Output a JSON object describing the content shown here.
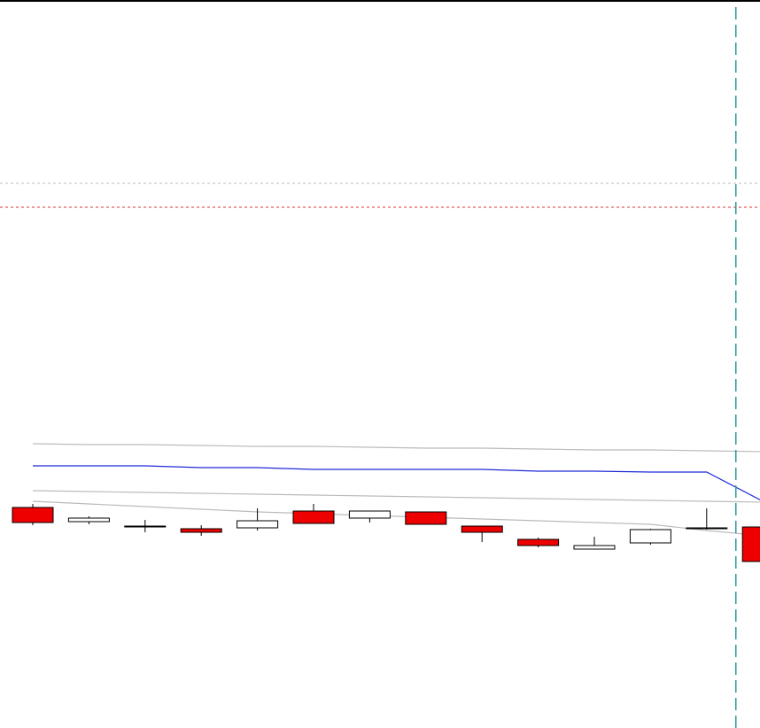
{
  "chart_data": {
    "type": "candlestick",
    "ylim": [
      0,
      822
    ],
    "up_color": "#ffffff",
    "down_color": "#ee0000",
    "candles": {
      "open": [
        249,
        233,
        228,
        225,
        226,
        245,
        237,
        244,
        228,
        213,
        202,
        209,
        226,
        227
      ],
      "high": [
        253,
        239,
        235,
        229,
        248,
        253,
        245,
        244,
        228,
        215,
        216,
        225,
        248,
        232
      ],
      "low": [
        229,
        230,
        221,
        217,
        223,
        231,
        232,
        230,
        210,
        204,
        202,
        207,
        224,
        188
      ],
      "close": [
        232,
        237,
        228,
        221,
        234,
        231,
        245,
        230,
        221,
        206,
        206,
        224,
        226,
        188
      ]
    },
    "series": [
      {
        "color": "#bbbbbb",
        "values": [
          321,
          320,
          320,
          319,
          318,
          318,
          317,
          316,
          316,
          315,
          314,
          314,
          313,
          312
        ]
      },
      {
        "color": "#1f2bd6",
        "values": [
          296,
          296,
          296,
          294,
          294,
          292,
          292,
          292,
          292,
          290,
          290,
          289,
          289,
          256
        ]
      },
      {
        "color": "#bbbbbb",
        "values": [
          268,
          267,
          266,
          265,
          264,
          263,
          262,
          261,
          260,
          259,
          258,
          257,
          256,
          255
        ]
      },
      {
        "color": "#bbbbbb",
        "values": [
          256,
          253,
          250,
          247,
          244,
          242,
          240,
          238,
          236,
          234,
          232,
          230,
          223,
          217
        ]
      }
    ],
    "hlines": [
      {
        "value": 615,
        "color": "#bbbbbb"
      },
      {
        "value": 588,
        "color": "#e03030"
      }
    ],
    "vline": {
      "value": 12.52,
      "color": "#2a9a9a"
    }
  }
}
